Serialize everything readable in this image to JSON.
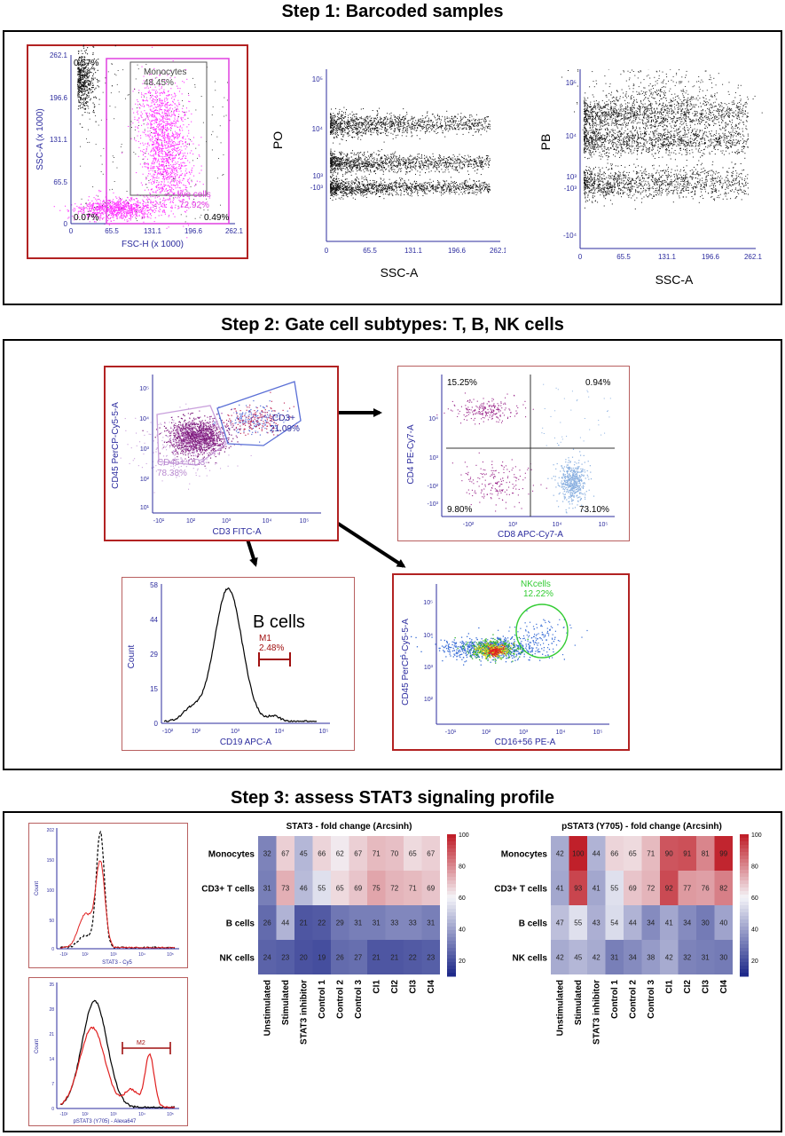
{
  "colors": {
    "gate_magenta": "#e040e0",
    "axis_blue": "#2b2b9e",
    "panel_red": "#b22222",
    "gate_green": "#33cc33",
    "gate_lilac": "#c9a0dc",
    "heat_high": "#c0202a",
    "heat_mid": "#f4f4f8",
    "heat_low": "#1f2a8a"
  },
  "step1": {
    "title": "Step 1: Barcoded samples",
    "p1": {
      "ytick": [
        "262.1",
        "196.6",
        "131.1",
        "65.5",
        "0"
      ],
      "xtick": [
        "0",
        "65.5",
        "131.1",
        "196.6",
        "262.1"
      ],
      "ylabel": "SSC-A (x 1000)",
      "xlabel": "FSC-H (x 1000)",
      "mono_label": "Monocytes",
      "mono_pct": "48.45%",
      "live_label": "live cells",
      "live_pct": "72.92%",
      "tl_pct": "0.57%",
      "bl_pct": "0.07%",
      "br_pct": "0.49%"
    },
    "p2": {
      "ylabel": "PO",
      "xlabel": "SSC-A",
      "ytick": [
        "10⁵",
        "10⁴",
        "10³",
        "-10³"
      ],
      "xtick": [
        "0",
        "65.5",
        "131.1",
        "196.6",
        "262.1"
      ]
    },
    "p3": {
      "ylabel": "PB",
      "xlabel": "SSC-A",
      "ytick": [
        "10⁵",
        "10⁴",
        "10³",
        "-10³",
        "-10⁴"
      ],
      "xtick": [
        "0",
        "65.5",
        "131.1",
        "196.6",
        "262.1"
      ]
    }
  },
  "step2": {
    "title": "Step 2: Gate cell subtypes: T, B, NK cells",
    "cd3": {
      "ylabel": "CD45 PerCP-Cy5-5-A",
      "xlabel": "CD3 FITC-A",
      "ytick": [
        "10⁵",
        "10⁴",
        "10³",
        "10²",
        "10¹"
      ],
      "xtick": [
        "-10¹",
        "10²",
        "10³",
        "10⁴",
        "10⁵"
      ],
      "cd3_label": "CD3+",
      "cd3_pct": "21.09%",
      "neg_label": "CD45+ CD3-",
      "neg_pct": "78.38%"
    },
    "cd4": {
      "ylabel": "CD4 PE-Cy7-A",
      "xlabel": "CD8 APC-Cy7-A",
      "ytick": [
        "10⁴",
        "10³",
        "-10²",
        "-10³"
      ],
      "xtick": [
        "-10²",
        "10³",
        "10⁴",
        "10⁵"
      ],
      "q_tl": "15.25%",
      "q_tr": "0.94%",
      "q_bl": "9.80%",
      "q_br": "73.10%"
    },
    "bcell": {
      "ylabel": "Count",
      "xlabel": "CD19 APC-A",
      "ytick": [
        "58",
        "44",
        "29",
        "15",
        "0"
      ],
      "xtick": [
        "-10²",
        "10²",
        "10³",
        "10⁴",
        "10⁵"
      ],
      "title": "B cells",
      "gate_label": "M1",
      "gate_pct": "2.48%"
    },
    "nk": {
      "ylabel": "CD45 PerCP-Cy5-5-A",
      "xlabel": "CD16+56 PE-A",
      "ytick": [
        "10⁵",
        "10⁴",
        "10³",
        "10²"
      ],
      "xtick": [
        "-10¹",
        "10²",
        "10³",
        "10⁴",
        "10⁵"
      ],
      "gate_label": "NKcells",
      "gate_pct": "12.22%"
    }
  },
  "step3": {
    "title": "Step 3: assess STAT3 signaling profile",
    "h1": {
      "ylabel": "Count",
      "xlabel": "STAT3 - Cy5",
      "ytick": [
        "202",
        "150",
        "100",
        "50",
        "0"
      ],
      "xtick": [
        "-10²",
        "10²",
        "10³",
        "10⁴",
        "10⁵"
      ]
    },
    "h2": {
      "ylabel": "Count",
      "xlabel": "pSTAT3 (Y705) - Alexa647",
      "ytick": [
        "35",
        "28",
        "21",
        "14",
        "7",
        "0"
      ],
      "xtick": [
        "-10²",
        "10²",
        "10³",
        "10⁴",
        "10⁵"
      ],
      "gate_label": "M2"
    },
    "heatmaps": [
      {
        "title": "STAT3 - fold change (Arcsinh)",
        "rows": [
          "Monocytes",
          "CD3+ T cells",
          "B cells",
          "NK cells"
        ],
        "cols": [
          "Unstimulated",
          "Stimulated",
          "STAT3 inhibitor",
          "Control 1",
          "Control 2",
          "Control 3",
          "CI1",
          "CI2",
          "CI3",
          "CI4"
        ],
        "values": [
          [
            32,
            67,
            45,
            66,
            62,
            67,
            71,
            70,
            65,
            67
          ],
          [
            31,
            73,
            46,
            55,
            65,
            69,
            75,
            72,
            71,
            69
          ],
          [
            26,
            44,
            21,
            22,
            29,
            31,
            31,
            33,
            33,
            31
          ],
          [
            24,
            23,
            20,
            19,
            26,
            27,
            21,
            21,
            22,
            23
          ]
        ],
        "scale": [
          "100",
          "80",
          "60",
          "40",
          "20"
        ]
      },
      {
        "title": "pSTAT3 (Y705) - fold change (Arcsinh)",
        "rows": [
          "Monocytes",
          "CD3+ T cells",
          "B cells",
          "NK cells"
        ],
        "cols": [
          "Unstimulated",
          "Stimulated",
          "STAT3 inhibitor",
          "Control 1",
          "Control 2",
          "Control 3",
          "CI1",
          "CI2",
          "CI3",
          "CI4"
        ],
        "values": [
          [
            42,
            100,
            44,
            66,
            65,
            71,
            90,
            91,
            81,
            99
          ],
          [
            41,
            93,
            41,
            55,
            69,
            72,
            92,
            77,
            76,
            82
          ],
          [
            47,
            55,
            43,
            54,
            44,
            34,
            41,
            34,
            30,
            40
          ],
          [
            42,
            45,
            42,
            31,
            34,
            38,
            42,
            32,
            31,
            30
          ]
        ],
        "scale": [
          "100",
          "80",
          "60",
          "40",
          "20"
        ]
      }
    ]
  }
}
